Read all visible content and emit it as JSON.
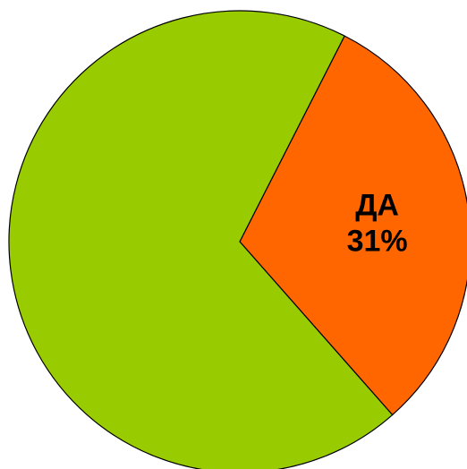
{
  "chart_data": {
    "type": "pie",
    "slices": [
      {
        "label": "ДА",
        "value": 31,
        "value_label": "31%",
        "color": "#FF6600"
      },
      {
        "label": "",
        "value": 69,
        "value_label": "",
        "color": "#99CC00"
      }
    ],
    "start_angle_deg": 27,
    "direction": "clockwise",
    "legend": "none",
    "title": ""
  }
}
